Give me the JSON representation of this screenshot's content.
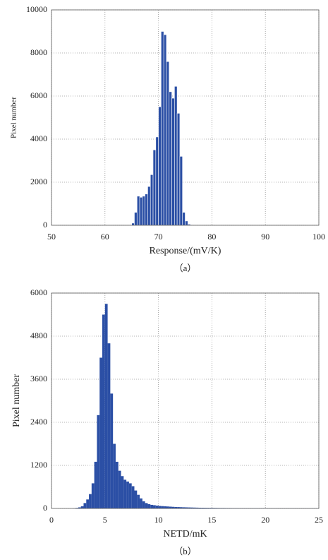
{
  "chart_data": [
    {
      "type": "histogram",
      "xlabel": "Response/(mV/K)",
      "ylabel": "Pixel number",
      "caption": "（a）",
      "bins": [
        65,
        65.5,
        66,
        66.5,
        67,
        67.5,
        68,
        68.5,
        69,
        69.5,
        70,
        70.5,
        71,
        71.5,
        72,
        72.5,
        73,
        73.5,
        74,
        74.5,
        75,
        75.5,
        76,
        76.5,
        77
      ],
      "values": [
        100,
        600,
        1350,
        1300,
        1350,
        1450,
        1800,
        2350,
        3500,
        4100,
        5500,
        9000,
        8850,
        7600,
        6200,
        5900,
        6450,
        5200,
        3200,
        600,
        200,
        50,
        20,
        5
      ],
      "color": "#2b4fa5",
      "xlim": [
        50,
        100
      ],
      "xticks": [
        50,
        60,
        70,
        80,
        90,
        100
      ],
      "ylim": [
        0,
        10000
      ],
      "yticks": [
        0,
        2000,
        4000,
        6000,
        8000,
        10000
      ],
      "grid": true
    },
    {
      "type": "histogram",
      "xlabel": "NETD/mK",
      "ylabel": "Pixel number",
      "caption": "（b）",
      "bins": [
        2,
        2.25,
        2.5,
        2.75,
        3,
        3.25,
        3.5,
        3.75,
        4,
        4.25,
        4.5,
        4.75,
        5,
        5.25,
        5.5,
        5.75,
        6,
        6.25,
        6.5,
        6.75,
        7,
        7.25,
        7.5,
        7.75,
        8,
        8.25,
        8.5,
        8.75,
        9,
        9.25,
        9.5,
        9.75,
        10,
        10.25,
        10.5,
        10.75,
        11,
        11.25,
        11.5,
        11.75,
        12,
        12.25,
        12.5,
        12.75,
        13,
        13.25,
        13.5,
        13.75,
        14,
        14.25,
        14.5,
        14.75,
        15,
        15.25,
        15.5,
        15.75,
        16,
        16.25,
        16.5,
        16.75,
        17,
        17.25,
        17.5,
        17.75,
        18,
        18.25,
        18.5,
        18.75,
        19,
        19.25,
        19.5,
        19.75,
        20,
        20.25,
        20.5,
        20.75,
        21,
        21.25,
        21.5,
        21.75,
        22,
        22.25,
        22.5,
        22.75,
        23,
        23.25,
        23.5,
        23.75,
        24,
        24.25,
        24.5,
        24.75,
        25
      ],
      "values": [
        5,
        15,
        30,
        60,
        150,
        250,
        400,
        700,
        1300,
        2600,
        4200,
        5400,
        5700,
        4600,
        3200,
        1800,
        1300,
        1050,
        900,
        800,
        750,
        700,
        620,
        500,
        380,
        280,
        200,
        150,
        120,
        100,
        90,
        80,
        70,
        65,
        60,
        55,
        50,
        45,
        40,
        38,
        35,
        32,
        30,
        28,
        26,
        24,
        22,
        20,
        19,
        18,
        17,
        16,
        15,
        14,
        13,
        12,
        12,
        11,
        11,
        10,
        10,
        10,
        9,
        9,
        9,
        8,
        8,
        8,
        8,
        7,
        7,
        7,
        7,
        6,
        6,
        6,
        6,
        6,
        5,
        5,
        5,
        5,
        5,
        5,
        4,
        4,
        4,
        4,
        4,
        4,
        4,
        4
      ],
      "color": "#2b4fa5",
      "xlim": [
        0,
        25
      ],
      "xticks": [
        0,
        5,
        10,
        15,
        20,
        25
      ],
      "ylim": [
        0,
        6000
      ],
      "yticks": [
        0,
        1200,
        2400,
        3600,
        4800,
        6000
      ],
      "grid": true
    }
  ]
}
